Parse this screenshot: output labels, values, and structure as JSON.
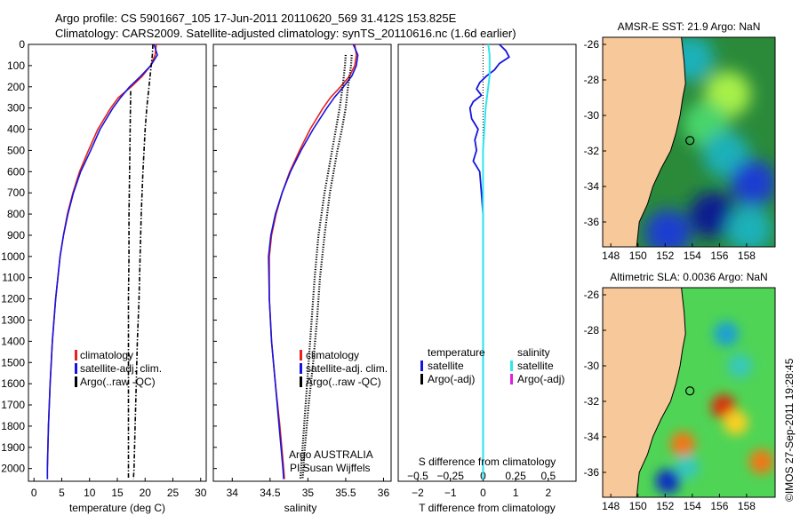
{
  "header": {
    "line1": "Argo profile: CS 5901667_105 17-Jun-2011 20110620_569 31.412S 153.825E",
    "line2": "Climatology: CARS2009. Satellite-adjusted climatology: synTS_20110616.nc (1.6d earlier)"
  },
  "colors": {
    "climatology": "#e8211d",
    "satellite": "#1414e0",
    "argo": "#000000",
    "sat_salinity": "#2ee6ee",
    "argo_adj_salinity": "#e020e0",
    "land": "#f7c89a"
  },
  "chart_data": [
    {
      "type": "line",
      "id": "temperature",
      "xlabel": "temperature (deg C)",
      "xlim": [
        -1,
        31
      ],
      "xticks": [
        0,
        5,
        10,
        15,
        20,
        25,
        30
      ],
      "xtick_labels": [
        "0",
        "5",
        "10",
        "15",
        "20",
        "25",
        "30"
      ],
      "ylim": [
        0,
        2060
      ],
      "yticks": [
        0,
        100,
        200,
        300,
        400,
        500,
        600,
        700,
        800,
        900,
        1000,
        1100,
        1200,
        1300,
        1400,
        1500,
        1600,
        1700,
        1800,
        1900,
        2000
      ],
      "ytick_labels": [
        "0",
        "100",
        "200",
        "300",
        "400",
        "500",
        "600",
        "700",
        "800",
        "900",
        "1000",
        "1100",
        "1200",
        "1300",
        "1400",
        "1500",
        "1600",
        "1700",
        "1800",
        "1900",
        "2000"
      ],
      "legend": [
        "climatology",
        "satellite-adj. clim.",
        "Argo(..raw -QC)"
      ],
      "series": [
        {
          "name": "climatology",
          "style": "line",
          "depth": [
            0,
            50,
            100,
            150,
            200,
            250,
            300,
            400,
            500,
            600,
            700,
            800,
            900,
            1000,
            1200,
            1400,
            1600,
            1800,
            2000,
            2050
          ],
          "values": [
            22.0,
            21.8,
            21.0,
            19.5,
            17.5,
            15.2,
            13.8,
            11.5,
            9.8,
            8.2,
            7.0,
            6.0,
            5.3,
            4.7,
            3.9,
            3.3,
            2.9,
            2.6,
            2.4,
            2.4
          ]
        },
        {
          "name": "satellite",
          "style": "line",
          "depth": [
            0,
            50,
            100,
            150,
            200,
            250,
            300,
            400,
            500,
            600,
            700,
            800,
            900,
            1000,
            1200,
            1400,
            1600,
            1800,
            2000,
            2050
          ],
          "values": [
            21.6,
            22.2,
            21.0,
            19.2,
            17.2,
            15.6,
            14.2,
            11.9,
            10.2,
            8.4,
            7.1,
            6.1,
            5.3,
            4.7,
            3.9,
            3.3,
            2.9,
            2.6,
            2.4,
            2.4
          ]
        },
        {
          "name": "argo_raw",
          "style": "dashdot",
          "depth": [
            0,
            50,
            100,
            200,
            300,
            400,
            600,
            800,
            1000,
            1200,
            1400,
            1600,
            1800,
            2000,
            2050
          ],
          "values": [
            21.4,
            21.3,
            21.1,
            20.7,
            20.3,
            20.0,
            19.6,
            19.3,
            19.1,
            18.9,
            18.6,
            18.4,
            18.2,
            18.0,
            17.9
          ]
        },
        {
          "name": "argo_qc",
          "style": "dashdot",
          "depth": [
            220,
            400,
            600,
            800,
            1000,
            1200,
            1400,
            1600,
            1800,
            2000,
            2050
          ],
          "values": [
            17.4,
            17.3,
            17.2,
            17.1,
            17.1,
            17.0,
            17.0,
            17.0,
            17.0,
            17.0,
            17.0
          ]
        }
      ]
    },
    {
      "type": "line",
      "id": "salinity",
      "xlabel": "salinity",
      "xlim": [
        33.75,
        36.1
      ],
      "xticks": [
        34,
        34.5,
        35,
        35.5,
        36
      ],
      "xtick_labels": [
        "34",
        "34.5",
        "35",
        "35.5",
        "36"
      ],
      "ylim": [
        0,
        2060
      ],
      "legend": [
        "climatology",
        "satellite-adj. clim.",
        "Argo(..raw -QC)"
      ],
      "annotations": [
        "Argo AUSTRALIA",
        "PI Susan Wijffels"
      ],
      "series": [
        {
          "name": "climatology",
          "style": "line",
          "depth": [
            0,
            50,
            100,
            150,
            200,
            250,
            300,
            400,
            500,
            600,
            700,
            800,
            900,
            1000,
            1200,
            1400,
            1600,
            1800,
            2000,
            2050
          ],
          "values": [
            35.62,
            35.64,
            35.62,
            35.55,
            35.43,
            35.3,
            35.2,
            35.03,
            34.89,
            34.76,
            34.66,
            34.58,
            34.52,
            34.49,
            34.49,
            34.52,
            34.57,
            34.63,
            34.68,
            34.69
          ]
        },
        {
          "name": "satellite",
          "style": "line",
          "depth": [
            0,
            50,
            100,
            150,
            200,
            250,
            300,
            400,
            500,
            600,
            700,
            800,
            900,
            1000,
            1200,
            1400,
            1600,
            1800,
            2000,
            2050
          ],
          "values": [
            35.6,
            35.66,
            35.64,
            35.58,
            35.47,
            35.35,
            35.25,
            35.07,
            34.91,
            34.77,
            34.66,
            34.57,
            34.51,
            34.48,
            34.49,
            34.52,
            34.57,
            34.62,
            34.67,
            34.68
          ]
        },
        {
          "name": "argo_raw",
          "style": "dotted",
          "depth": [
            50,
            100,
            200,
            300,
            400,
            500,
            700,
            900,
            1100,
            1300,
            1500,
            1700,
            1900,
            2050
          ],
          "values": [
            35.58,
            35.57,
            35.53,
            35.5,
            35.45,
            35.39,
            35.29,
            35.22,
            35.16,
            35.12,
            35.07,
            35.01,
            34.96,
            34.93
          ]
        },
        {
          "name": "argo_qc",
          "style": "dotted",
          "depth": [
            50,
            100,
            200,
            300,
            400,
            500,
            700,
            900,
            1100,
            1300,
            1500,
            1700,
            1900,
            2050
          ],
          "values": [
            35.5,
            35.49,
            35.46,
            35.42,
            35.37,
            35.32,
            35.22,
            35.14,
            35.09,
            35.05,
            35.01,
            34.97,
            34.93,
            34.9
          ]
        }
      ]
    },
    {
      "type": "line",
      "id": "differences",
      "xlabel": "T difference from climatology",
      "xlabel2": "S difference from climatology",
      "xlim": [
        -2.6,
        2.85
      ],
      "xticks_T": [
        -2,
        -1,
        0,
        1,
        2
      ],
      "xtick_labels_T": [
        "−2",
        "−1",
        "0",
        "1",
        "2"
      ],
      "xticks_S": [
        -0.5,
        -0.25,
        0,
        0.25,
        0.5
      ],
      "xtick_labels_S": [
        "−0.5",
        "−0.25",
        "0",
        "0.25",
        "0.5"
      ],
      "ylim": [
        0,
        2060
      ],
      "legend_temperature_title": "temperature",
      "legend_temperature": [
        "satellite",
        "Argo(-adj)"
      ],
      "legend_salinity_title": "salinity",
      "legend_salinity": [
        "satellite",
        "Argo(-adj)"
      ],
      "series": [
        {
          "name": "T satellite",
          "depth": [
            0,
            30,
            60,
            90,
            120,
            150,
            180,
            210,
            240,
            270,
            300,
            350,
            400,
            450,
            500,
            550,
            600,
            700,
            800,
            1000,
            1500,
            2050
          ],
          "values": [
            0.5,
            0.7,
            0.8,
            0.5,
            0.35,
            0.1,
            -0.1,
            -0.2,
            -0.05,
            -0.3,
            -0.4,
            -0.35,
            -0.15,
            -0.25,
            -0.2,
            -0.3,
            -0.1,
            -0.05,
            0.0,
            0.0,
            0.0,
            0.0
          ]
        },
        {
          "name": "S satellite",
          "depth": [
            0,
            50,
            100,
            150,
            200,
            250,
            300,
            400,
            500,
            600,
            700,
            800,
            1000,
            1500,
            2050
          ],
          "values": [
            0.04,
            0.05,
            0.05,
            0.05,
            0.04,
            0.03,
            0.02,
            0.01,
            0.0,
            0.0,
            0.0,
            0.0,
            0.0,
            0.0,
            0.0
          ]
        }
      ]
    },
    {
      "type": "heatmap",
      "id": "sst_map",
      "title": "AMSR-E SST: 21.9 Argo: NaN",
      "xticks": [
        148,
        150,
        152,
        154,
        156,
        158
      ],
      "xtick_labels": [
        "148",
        "150",
        "152",
        "154",
        "156",
        "158"
      ],
      "yticks": [
        -26,
        -28,
        -30,
        -32,
        -34,
        -36
      ],
      "ytick_labels": [
        "-26",
        "-28",
        "-30",
        "-32",
        "-34",
        "-36"
      ],
      "xlim": [
        147.4,
        160.1
      ],
      "ylim": [
        -37.4,
        -25.6
      ],
      "profile_location": [
        153.825,
        -31.412
      ],
      "coast_lon": [
        [
          -25.6,
          153.2
        ],
        [
          -27,
          153.4
        ],
        [
          -28.2,
          153.5
        ],
        [
          -29,
          153.3
        ],
        [
          -30,
          153.1
        ],
        [
          -31,
          152.8
        ],
        [
          -32,
          152.4
        ],
        [
          -33,
          151.7
        ],
        [
          -34,
          151.1
        ],
        [
          -35,
          150.7
        ],
        [
          -36,
          150.1
        ],
        [
          -37.4,
          149.9
        ]
      ],
      "blobs": [
        {
          "lon": 153.9,
          "lat": -26.8,
          "level": 0.3
        },
        {
          "lon": 156.6,
          "lat": -28.8,
          "level": 0.8
        },
        {
          "lon": 155.0,
          "lat": -30.5,
          "level": 0.6
        },
        {
          "lon": 156.5,
          "lat": -32.2,
          "level": 0.4
        },
        {
          "lon": 158.5,
          "lat": -33.8,
          "level": 0.2
        },
        {
          "lon": 155.5,
          "lat": -35.6,
          "level": 0.1
        },
        {
          "lon": 152.2,
          "lat": -36.6,
          "level": 0.15
        },
        {
          "lon": 158.2,
          "lat": -36.4,
          "level": 0.3
        }
      ]
    },
    {
      "type": "heatmap",
      "id": "sla_map",
      "title": "Altimetric SLA: 0.0036 Argo: NaN",
      "xticks": [
        148,
        150,
        152,
        154,
        156,
        158
      ],
      "xtick_labels": [
        "148",
        "150",
        "152",
        "154",
        "156",
        "158"
      ],
      "yticks": [
        -26,
        -28,
        -30,
        -32,
        -34,
        -36
      ],
      "ytick_labels": [
        "-26",
        "-28",
        "-30",
        "-32",
        "-34",
        "-36"
      ],
      "xlim": [
        147.4,
        160.1
      ],
      "ylim": [
        -37.4,
        -25.6
      ],
      "profile_location": [
        153.825,
        -31.412
      ],
      "blobs": [
        {
          "lon": 156.3,
          "lat": -32.3,
          "level": 0.95
        },
        {
          "lon": 157.2,
          "lat": -33.2,
          "level": 0.8
        },
        {
          "lon": 153.3,
          "lat": -34.4,
          "level": 0.9
        },
        {
          "lon": 159.1,
          "lat": -35.4,
          "level": 0.85
        },
        {
          "lon": 153.6,
          "lat": -35.7,
          "level": 0.6
        },
        {
          "lon": 152.2,
          "lat": -36.5,
          "level": 0.05
        },
        {
          "lon": 156.5,
          "lat": -28.2,
          "level": 0.25
        },
        {
          "lon": 157.5,
          "lat": -30.0,
          "level": 0.3
        }
      ]
    }
  ],
  "credit": "©IMOS 27-Sep-2011 19:28:45"
}
